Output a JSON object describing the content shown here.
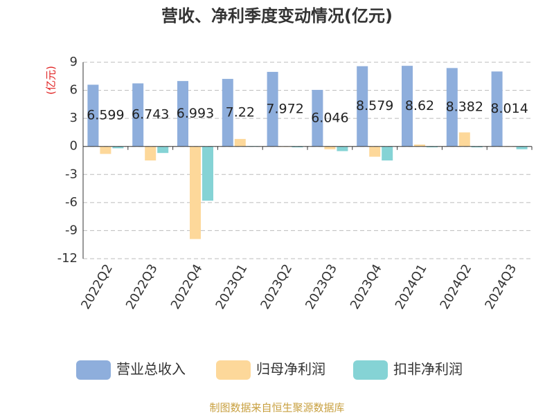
{
  "chart_data": {
    "type": "bar",
    "title": "营收、净利季度变动情况(亿元)",
    "y_label": "(亿元)",
    "source": "制图数据来自恒生聚源数据库",
    "categories": [
      "2022Q2",
      "2022Q3",
      "2022Q4",
      "2023Q1",
      "2023Q2",
      "2023Q3",
      "2023Q4",
      "2024Q1",
      "2024Q2",
      "2024Q3"
    ],
    "series": [
      {
        "name": "营业总收入",
        "color": "#8eaedc",
        "values": [
          6.599,
          6.743,
          6.993,
          7.22,
          7.972,
          6.046,
          8.579,
          8.62,
          8.382,
          8.014
        ],
        "show_labels": true
      },
      {
        "name": "归母净利润",
        "color": "#fdd89a",
        "values": [
          -0.8,
          -1.5,
          -9.9,
          0.8,
          -0.05,
          -0.3,
          -1.1,
          0.2,
          1.5,
          -0.05
        ],
        "show_labels": false
      },
      {
        "name": "扣非净利润",
        "color": "#85d3d5",
        "values": [
          -0.2,
          -0.7,
          -5.8,
          0.05,
          -0.1,
          -0.5,
          -1.5,
          -0.1,
          -0.1,
          -0.3
        ],
        "show_labels": false
      }
    ],
    "ylim": [
      -12,
      9
    ],
    "yticks": [
      9,
      6,
      3,
      0,
      -3,
      -6,
      -9,
      -12
    ],
    "grid": true
  }
}
